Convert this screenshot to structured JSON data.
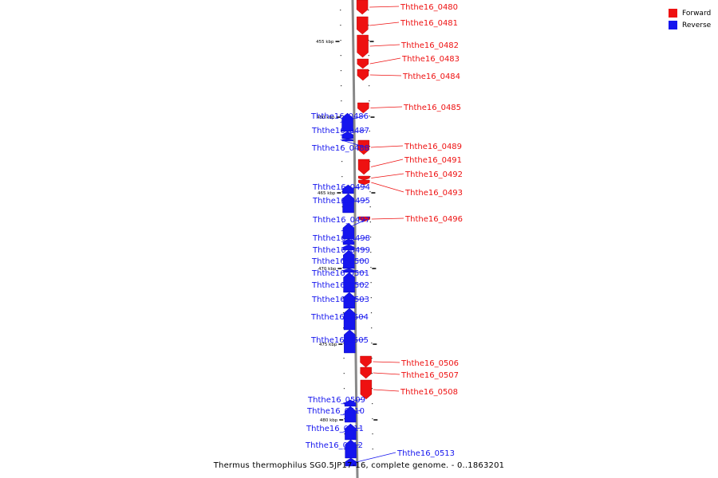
{
  "title": "Thermus thermophilus SG0.5JP17-16, complete genome. - 0..1863201",
  "legend": [
    {
      "label": "Forward",
      "color": "#ee1111"
    },
    {
      "label": "Reverse",
      "color": "#1515ee"
    }
  ],
  "colors": {
    "forward": "#ee1111",
    "reverse": "#1515ee",
    "backbone": "#888888"
  },
  "scale_ticks": [
    {
      "label": "455 kbp"
    },
    {
      "label": "460 kbp"
    },
    {
      "label": "465 kbp"
    },
    {
      "label": "470 kbp"
    },
    {
      "label": "475 kbp"
    },
    {
      "label": "480 kbp"
    }
  ],
  "genes": [
    {
      "name": "Ththe16_0480",
      "strand": "forward"
    },
    {
      "name": "Ththe16_0481",
      "strand": "forward"
    },
    {
      "name": "Ththe16_0482",
      "strand": "forward"
    },
    {
      "name": "Ththe16_0483",
      "strand": "forward"
    },
    {
      "name": "Ththe16_0484",
      "strand": "forward"
    },
    {
      "name": "Ththe16_0485",
      "strand": "forward"
    },
    {
      "name": "Ththe16_0486",
      "strand": "reverse"
    },
    {
      "name": "Ththe16_0487",
      "strand": "reverse"
    },
    {
      "name": "Ththe16_0488",
      "strand": "reverse"
    },
    {
      "name": "Ththe16_0489",
      "strand": "forward"
    },
    {
      "name": "Ththe16_0491",
      "strand": "forward"
    },
    {
      "name": "Ththe16_0492",
      "strand": "forward"
    },
    {
      "name": "Ththe16_0493",
      "strand": "forward"
    },
    {
      "name": "Ththe16_0494",
      "strand": "reverse"
    },
    {
      "name": "Ththe16_0495",
      "strand": "reverse"
    },
    {
      "name": "Ththe16_0496",
      "strand": "forward"
    },
    {
      "name": "Ththe16_0497",
      "strand": "reverse"
    },
    {
      "name": "Ththe16_0498",
      "strand": "reverse"
    },
    {
      "name": "Ththe16_0499",
      "strand": "reverse"
    },
    {
      "name": "Ththe16_0500",
      "strand": "reverse"
    },
    {
      "name": "Ththe16_0501",
      "strand": "reverse"
    },
    {
      "name": "Ththe16_0502",
      "strand": "reverse"
    },
    {
      "name": "Ththe16_0503",
      "strand": "reverse"
    },
    {
      "name": "Ththe16_0504",
      "strand": "reverse"
    },
    {
      "name": "Ththe16_0505",
      "strand": "reverse"
    },
    {
      "name": "Ththe16_0506",
      "strand": "forward"
    },
    {
      "name": "Ththe16_0507",
      "strand": "forward"
    },
    {
      "name": "Ththe16_0508",
      "strand": "forward"
    },
    {
      "name": "Ththe16_0509",
      "strand": "reverse"
    },
    {
      "name": "Ththe16_0510",
      "strand": "reverse"
    },
    {
      "name": "Ththe16_0511",
      "strand": "reverse"
    },
    {
      "name": "Ththe16_0512",
      "strand": "reverse"
    },
    {
      "name": "Ththe16_0513",
      "strand": "reverse"
    }
  ]
}
